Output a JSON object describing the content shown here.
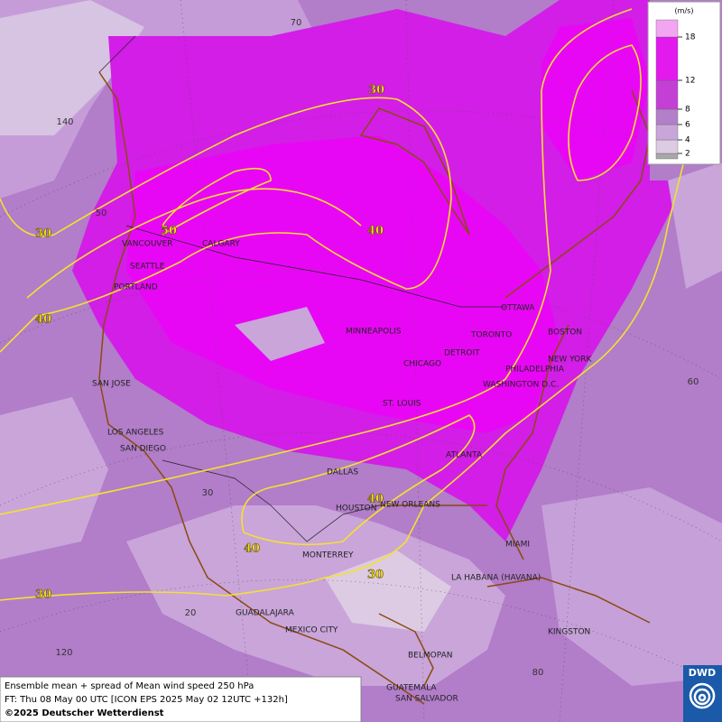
{
  "map": {
    "cities": [
      "VANCOUVER",
      "CALGARY",
      "SEATTLE",
      "PORTLAND",
      "SAN JOSE",
      "LOS ANGELES",
      "SAN DIEGO",
      "MINNEAPOLIS",
      "CHICAGO",
      "DETROIT",
      "TORONTO",
      "OTTAWA",
      "BOSTON",
      "NEW YORK",
      "PHILADELPHIA",
      "WASHINGTON D.C.",
      "ST. LOUIS",
      "ATLANTA",
      "DALLAS",
      "HOUSTON",
      "NEW ORLEANS",
      "MIAMI",
      "MONTERREY",
      "LA HABANA (HAVANA)",
      "GUADALAJARA",
      "MEXICO CITY",
      "KINGSTON",
      "BELMOPAN",
      "GUATEMALA",
      "SAN SALVADOR"
    ],
    "contour_labels": [
      30,
      30,
      50,
      40,
      40,
      40,
      40,
      30,
      30
    ],
    "graticule_labels": [
      70,
      140,
      50,
      60,
      30,
      20,
      120,
      80
    ]
  },
  "legend": {
    "unit": "(m/s)",
    "levels": [
      2,
      4,
      6,
      8,
      12,
      18
    ],
    "colors": [
      "#a8a8a8",
      "#dccbe3",
      "#c9a6da",
      "#b37fc9",
      "#c43fd6",
      "#e21aee",
      "#f2a6f2"
    ]
  },
  "footer": {
    "line1": "Ensemble mean + spread of Mean wind speed 250 hPa",
    "line2": "FT: Thu 08 May 00 UTC [ICON EPS 2025 May 02 12UTC +132h]",
    "copyright": "©2025 Deutscher Wetterdienst"
  },
  "logo": "DWD"
}
